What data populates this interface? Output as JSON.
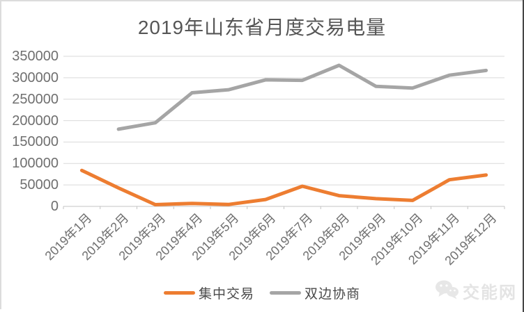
{
  "title": "2019年山东省月度交易电量",
  "chart_data": {
    "type": "line",
    "title": "2019年山东省月度交易电量",
    "categories": [
      "2019年1月",
      "2019年2月",
      "2019年3月",
      "2019年4月",
      "2019年5月",
      "2019年6月",
      "2019年7月",
      "2019年8月",
      "2019年9月",
      "2019年10月",
      "2019年11月",
      "2019年12月"
    ],
    "series": [
      {
        "id": "centralized-trading",
        "name": "集中交易",
        "color": "#ED7D31",
        "values": [
          84000,
          43000,
          4000,
          7000,
          4500,
          16000,
          47000,
          25000,
          18000,
          14000,
          62000,
          73000
        ]
      },
      {
        "id": "bilateral-negotiation",
        "name": "双边协商",
        "color": "#A5A5A5",
        "values": [
          null,
          180000,
          195000,
          265000,
          272000,
          295000,
          294000,
          329000,
          280000,
          276000,
          306000,
          317000
        ]
      }
    ],
    "xlabel": "",
    "ylabel": "",
    "ylim": [
      0,
      350000
    ],
    "y_tick_step": 50000,
    "y_tick_labels": [
      "350000",
      "300000",
      "250000",
      "200000",
      "150000",
      "100000",
      "50000",
      "0"
    ],
    "grid": true,
    "legend_position": "bottom",
    "gridline_color": "#d9d9d9",
    "axis_color": "#c3c3c3"
  },
  "watermark": {
    "icon": "wechat-icon",
    "text": "交能网"
  }
}
